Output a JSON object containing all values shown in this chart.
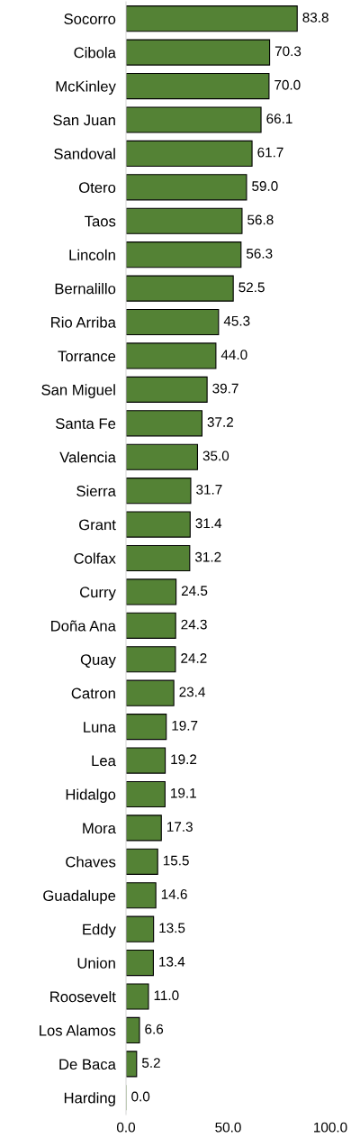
{
  "chart_data": {
    "type": "bar",
    "orientation": "horizontal",
    "categories": [
      "Socorro",
      "Cibola",
      "McKinley",
      "San Juan",
      "Sandoval",
      "Otero",
      "Taos",
      "Lincoln",
      "Bernalillo",
      "Rio Arriba",
      "Torrance",
      "San Miguel",
      "Santa Fe",
      "Valencia",
      "Sierra",
      "Grant",
      "Colfax",
      "Curry",
      "Doña Ana",
      "Quay",
      "Catron",
      "Luna",
      "Lea",
      "Hidalgo",
      "Mora",
      "Chaves",
      "Guadalupe",
      "Eddy",
      "Union",
      "Roosevelt",
      "Los Alamos",
      "De Baca",
      "Harding"
    ],
    "values": [
      83.8,
      70.3,
      70.0,
      66.1,
      61.7,
      59.0,
      56.8,
      56.3,
      52.5,
      45.3,
      44.0,
      39.7,
      37.2,
      35.0,
      31.7,
      31.4,
      31.2,
      24.5,
      24.3,
      24.2,
      23.4,
      19.7,
      19.2,
      19.1,
      17.3,
      15.5,
      14.6,
      13.5,
      13.4,
      11.0,
      6.6,
      5.2,
      0.0
    ],
    "color": "#548235",
    "xlim": [
      0,
      100
    ],
    "xticks": [
      {
        "value": 0,
        "label": "0.0"
      },
      {
        "value": 50,
        "label": "50.0"
      },
      {
        "value": 100,
        "label": "100.0"
      }
    ],
    "value_labels": [
      "83.8",
      "70.3",
      "70.0",
      "66.1",
      "61.7",
      "59.0",
      "56.8",
      "56.3",
      "52.5",
      "45.3",
      "44.0",
      "39.7",
      "37.2",
      "35.0",
      "31.7",
      "31.4",
      "31.2",
      "24.5",
      "24.3",
      "24.2",
      "23.4",
      "19.7",
      "19.2",
      "19.1",
      "17.3",
      "15.5",
      "14.6",
      "13.5",
      "13.4",
      "11.0",
      "6.6",
      "5.2",
      "0.0"
    ],
    "grid": false,
    "legend": false
  }
}
